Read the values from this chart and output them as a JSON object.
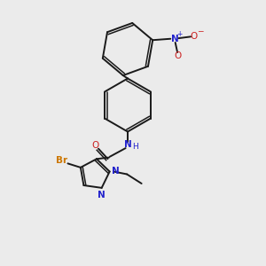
{
  "bg_color": "#ebebeb",
  "bond_color": "#1a1a1a",
  "n_color": "#2222cc",
  "o_color": "#cc2222",
  "br_color": "#cc7700",
  "figsize": [
    3.0,
    3.0
  ],
  "dpi": 100,
  "xlim": [
    0,
    10
  ],
  "ylim": [
    0,
    10
  ],
  "lw": 1.4,
  "lw2": 1.1,
  "fs": 7.5,
  "fs_small": 6.5
}
